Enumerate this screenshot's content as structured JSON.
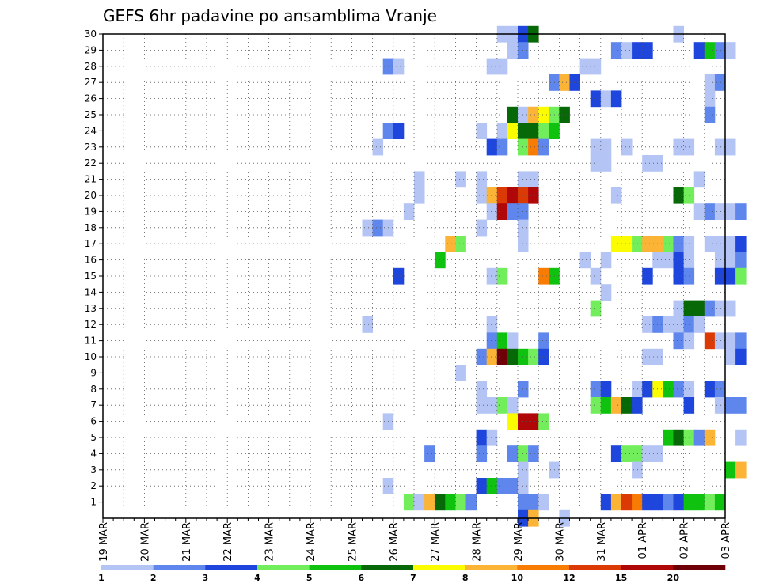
{
  "chart_data": {
    "type": "heatmap",
    "title": "GEFS 6hr padavine po ansamblima Vranje",
    "xlabel": "",
    "ylabel": "",
    "x_tick_labels": [
      "19 MAR",
      "20 MAR",
      "21 MAR",
      "22 MAR",
      "23 MAR",
      "24 MAR",
      "25 MAR",
      "26 MAR",
      "27 MAR",
      "28 MAR",
      "29 MAR",
      "30 MAR",
      "31 MAR",
      "01 APR",
      "02 APR",
      "03 APR"
    ],
    "y_tick_labels": [
      "1",
      "2",
      "3",
      "4",
      "5",
      "6",
      "7",
      "8",
      "9",
      "10",
      "11",
      "12",
      "13",
      "14",
      "15",
      "16",
      "17",
      "18",
      "19",
      "20",
      "21",
      "22",
      "23",
      "24",
      "25",
      "26",
      "27",
      "28",
      "29",
      "30"
    ],
    "x_step_unit": "6hr",
    "steps_per_day": 4,
    "y_range": [
      0,
      30
    ],
    "grid": true,
    "legend": {
      "placement": "bottom",
      "labels": [
        "1",
        "2",
        "3",
        "4",
        "5",
        "6",
        "7",
        "8",
        "10",
        "12",
        "15",
        "20"
      ],
      "colors": [
        "#b4c4f4",
        "#5e86ec",
        "#1e46dc",
        "#72ee5c",
        "#10c210",
        "#066806",
        "#fcfc00",
        "#fcb436",
        "#f87c04",
        "#dc3a04",
        "#b00808",
        "#700008"
      ]
    },
    "cells": [
      {
        "m": 30,
        "s": 38,
        "c": 0
      },
      {
        "m": 30,
        "s": 39,
        "c": 0
      },
      {
        "m": 30,
        "s": 40,
        "c": 2
      },
      {
        "m": 30,
        "s": 41,
        "c": 5
      },
      {
        "m": 30,
        "s": 55,
        "c": 0
      },
      {
        "m": 29,
        "s": 39,
        "c": 0
      },
      {
        "m": 29,
        "s": 40,
        "c": 1
      },
      {
        "m": 29,
        "s": 49,
        "c": 1
      },
      {
        "m": 29,
        "s": 50,
        "c": 0
      },
      {
        "m": 29,
        "s": 51,
        "c": 2
      },
      {
        "m": 29,
        "s": 52,
        "c": 2
      },
      {
        "m": 29,
        "s": 57,
        "c": 2
      },
      {
        "m": 29,
        "s": 58,
        "c": 4
      },
      {
        "m": 29,
        "s": 59,
        "c": 1
      },
      {
        "m": 29,
        "s": 60,
        "c": 0
      },
      {
        "m": 28,
        "s": 27,
        "c": 1
      },
      {
        "m": 28,
        "s": 28,
        "c": 0
      },
      {
        "m": 28,
        "s": 37,
        "c": 0
      },
      {
        "m": 28,
        "s": 38,
        "c": 0
      },
      {
        "m": 28,
        "s": 46,
        "c": 0
      },
      {
        "m": 28,
        "s": 47,
        "c": 0
      },
      {
        "m": 27,
        "s": 43,
        "c": 1
      },
      {
        "m": 27,
        "s": 44,
        "c": 7
      },
      {
        "m": 27,
        "s": 45,
        "c": 2
      },
      {
        "m": 27,
        "s": 58,
        "c": 0
      },
      {
        "m": 27,
        "s": 59,
        "c": 1
      },
      {
        "m": 26,
        "s": 47,
        "c": 2
      },
      {
        "m": 26,
        "s": 48,
        "c": 0
      },
      {
        "m": 26,
        "s": 49,
        "c": 2
      },
      {
        "m": 26,
        "s": 58,
        "c": 0
      },
      {
        "m": 25,
        "s": 39,
        "c": 5
      },
      {
        "m": 25,
        "s": 40,
        "c": 0
      },
      {
        "m": 25,
        "s": 41,
        "c": 7
      },
      {
        "m": 25,
        "s": 42,
        "c": 6
      },
      {
        "m": 25,
        "s": 43,
        "c": 3
      },
      {
        "m": 25,
        "s": 44,
        "c": 5
      },
      {
        "m": 25,
        "s": 58,
        "c": 1
      },
      {
        "m": 24,
        "s": 27,
        "c": 1
      },
      {
        "m": 24,
        "s": 28,
        "c": 2
      },
      {
        "m": 24,
        "s": 36,
        "c": 0
      },
      {
        "m": 24,
        "s": 38,
        "c": 0
      },
      {
        "m": 24,
        "s": 39,
        "c": 6
      },
      {
        "m": 24,
        "s": 40,
        "c": 5
      },
      {
        "m": 24,
        "s": 41,
        "c": 5
      },
      {
        "m": 24,
        "s": 42,
        "c": 3
      },
      {
        "m": 24,
        "s": 43,
        "c": 4
      },
      {
        "m": 23,
        "s": 26,
        "c": 0
      },
      {
        "m": 23,
        "s": 37,
        "c": 2
      },
      {
        "m": 23,
        "s": 38,
        "c": 1
      },
      {
        "m": 23,
        "s": 40,
        "c": 3
      },
      {
        "m": 23,
        "s": 41,
        "c": 8
      },
      {
        "m": 23,
        "s": 42,
        "c": 1
      },
      {
        "m": 23,
        "s": 47,
        "c": 0
      },
      {
        "m": 23,
        "s": 48,
        "c": 0
      },
      {
        "m": 23,
        "s": 50,
        "c": 0
      },
      {
        "m": 23,
        "s": 55,
        "c": 0
      },
      {
        "m": 23,
        "s": 56,
        "c": 0
      },
      {
        "m": 23,
        "s": 59,
        "c": 0
      },
      {
        "m": 23,
        "s": 60,
        "c": 0
      },
      {
        "m": 22,
        "s": 47,
        "c": 0
      },
      {
        "m": 22,
        "s": 48,
        "c": 0
      },
      {
        "m": 22,
        "s": 52,
        "c": 0
      },
      {
        "m": 22,
        "s": 53,
        "c": 0
      },
      {
        "m": 21,
        "s": 30,
        "c": 0
      },
      {
        "m": 21,
        "s": 34,
        "c": 0
      },
      {
        "m": 21,
        "s": 36,
        "c": 0
      },
      {
        "m": 21,
        "s": 40,
        "c": 0
      },
      {
        "m": 21,
        "s": 41,
        "c": 0
      },
      {
        "m": 21,
        "s": 57,
        "c": 0
      },
      {
        "m": 20,
        "s": 30,
        "c": 0
      },
      {
        "m": 20,
        "s": 36,
        "c": 0
      },
      {
        "m": 20,
        "s": 37,
        "c": 7
      },
      {
        "m": 20,
        "s": 38,
        "c": 9
      },
      {
        "m": 20,
        "s": 39,
        "c": 10
      },
      {
        "m": 20,
        "s": 40,
        "c": 9
      },
      {
        "m": 20,
        "s": 41,
        "c": 10
      },
      {
        "m": 20,
        "s": 49,
        "c": 0
      },
      {
        "m": 20,
        "s": 55,
        "c": 5
      },
      {
        "m": 20,
        "s": 56,
        "c": 3
      },
      {
        "m": 19,
        "s": 29,
        "c": 0
      },
      {
        "m": 19,
        "s": 37,
        "c": 0
      },
      {
        "m": 19,
        "s": 38,
        "c": 10
      },
      {
        "m": 19,
        "s": 39,
        "c": 1
      },
      {
        "m": 19,
        "s": 40,
        "c": 1
      },
      {
        "m": 19,
        "s": 57,
        "c": 0
      },
      {
        "m": 19,
        "s": 58,
        "c": 1
      },
      {
        "m": 19,
        "s": 59,
        "c": 0
      },
      {
        "m": 19,
        "s": 60,
        "c": 0
      },
      {
        "m": 19,
        "s": 61,
        "c": 1
      },
      {
        "m": 18,
        "s": 25,
        "c": 0
      },
      {
        "m": 18,
        "s": 26,
        "c": 1
      },
      {
        "m": 18,
        "s": 27,
        "c": 0
      },
      {
        "m": 18,
        "s": 36,
        "c": 0
      },
      {
        "m": 18,
        "s": 40,
        "c": 0
      },
      {
        "m": 17,
        "s": 33,
        "c": 7
      },
      {
        "m": 17,
        "s": 34,
        "c": 3
      },
      {
        "m": 17,
        "s": 40,
        "c": 0
      },
      {
        "m": 17,
        "s": 49,
        "c": 6
      },
      {
        "m": 17,
        "s": 50,
        "c": 6
      },
      {
        "m": 17,
        "s": 51,
        "c": 3
      },
      {
        "m": 17,
        "s": 52,
        "c": 7
      },
      {
        "m": 17,
        "s": 53,
        "c": 7
      },
      {
        "m": 17,
        "s": 54,
        "c": 3
      },
      {
        "m": 17,
        "s": 55,
        "c": 1
      },
      {
        "m": 17,
        "s": 56,
        "c": 0
      },
      {
        "m": 17,
        "s": 58,
        "c": 0
      },
      {
        "m": 17,
        "s": 59,
        "c": 0
      },
      {
        "m": 17,
        "s": 60,
        "c": 0
      },
      {
        "m": 17,
        "s": 61,
        "c": 2
      },
      {
        "m": 16,
        "s": 32,
        "c": 4
      },
      {
        "m": 16,
        "s": 46,
        "c": 0
      },
      {
        "m": 16,
        "s": 48,
        "c": 0
      },
      {
        "m": 16,
        "s": 53,
        "c": 0
      },
      {
        "m": 16,
        "s": 54,
        "c": 0
      },
      {
        "m": 16,
        "s": 55,
        "c": 2
      },
      {
        "m": 16,
        "s": 56,
        "c": 0
      },
      {
        "m": 16,
        "s": 59,
        "c": 0
      },
      {
        "m": 16,
        "s": 60,
        "c": 0
      },
      {
        "m": 16,
        "s": 61,
        "c": 1
      },
      {
        "m": 15,
        "s": 28,
        "c": 2
      },
      {
        "m": 15,
        "s": 37,
        "c": 0
      },
      {
        "m": 15,
        "s": 38,
        "c": 3
      },
      {
        "m": 15,
        "s": 42,
        "c": 8
      },
      {
        "m": 15,
        "s": 43,
        "c": 4
      },
      {
        "m": 15,
        "s": 47,
        "c": 0
      },
      {
        "m": 15,
        "s": 52,
        "c": 2
      },
      {
        "m": 15,
        "s": 55,
        "c": 2
      },
      {
        "m": 15,
        "s": 56,
        "c": 1
      },
      {
        "m": 15,
        "s": 59,
        "c": 2
      },
      {
        "m": 15,
        "s": 60,
        "c": 2
      },
      {
        "m": 15,
        "s": 61,
        "c": 3
      },
      {
        "m": 14,
        "s": 48,
        "c": 0
      },
      {
        "m": 13,
        "s": 47,
        "c": 3
      },
      {
        "m": 13,
        "s": 55,
        "c": 0
      },
      {
        "m": 13,
        "s": 56,
        "c": 5
      },
      {
        "m": 13,
        "s": 57,
        "c": 5
      },
      {
        "m": 13,
        "s": 58,
        "c": 1
      },
      {
        "m": 13,
        "s": 59,
        "c": 0
      },
      {
        "m": 13,
        "s": 60,
        "c": 0
      },
      {
        "m": 12,
        "s": 25,
        "c": 0
      },
      {
        "m": 12,
        "s": 37,
        "c": 0
      },
      {
        "m": 12,
        "s": 52,
        "c": 0
      },
      {
        "m": 12,
        "s": 53,
        "c": 1
      },
      {
        "m": 12,
        "s": 54,
        "c": 0
      },
      {
        "m": 12,
        "s": 55,
        "c": 0
      },
      {
        "m": 12,
        "s": 56,
        "c": 1
      },
      {
        "m": 12,
        "s": 57,
        "c": 0
      },
      {
        "m": 11,
        "s": 37,
        "c": 1
      },
      {
        "m": 11,
        "s": 38,
        "c": 4
      },
      {
        "m": 11,
        "s": 39,
        "c": 0
      },
      {
        "m": 11,
        "s": 42,
        "c": 1
      },
      {
        "m": 11,
        "s": 55,
        "c": 1
      },
      {
        "m": 11,
        "s": 56,
        "c": 0
      },
      {
        "m": 11,
        "s": 58,
        "c": 9
      },
      {
        "m": 11,
        "s": 59,
        "c": 0
      },
      {
        "m": 11,
        "s": 60,
        "c": 0
      },
      {
        "m": 11,
        "s": 61,
        "c": 1
      },
      {
        "m": 10,
        "s": 36,
        "c": 1
      },
      {
        "m": 10,
        "s": 37,
        "c": 7
      },
      {
        "m": 10,
        "s": 38,
        "c": 11
      },
      {
        "m": 10,
        "s": 39,
        "c": 5
      },
      {
        "m": 10,
        "s": 40,
        "c": 4
      },
      {
        "m": 10,
        "s": 41,
        "c": 3
      },
      {
        "m": 10,
        "s": 42,
        "c": 2
      },
      {
        "m": 10,
        "s": 52,
        "c": 0
      },
      {
        "m": 10,
        "s": 53,
        "c": 0
      },
      {
        "m": 10,
        "s": 60,
        "c": 0
      },
      {
        "m": 10,
        "s": 61,
        "c": 2
      },
      {
        "m": 9,
        "s": 34,
        "c": 0
      },
      {
        "m": 8,
        "s": 36,
        "c": 0
      },
      {
        "m": 8,
        "s": 40,
        "c": 1
      },
      {
        "m": 8,
        "s": 47,
        "c": 1
      },
      {
        "m": 8,
        "s": 48,
        "c": 2
      },
      {
        "m": 8,
        "s": 51,
        "c": 0
      },
      {
        "m": 8,
        "s": 52,
        "c": 2
      },
      {
        "m": 8,
        "s": 53,
        "c": 6
      },
      {
        "m": 8,
        "s": 54,
        "c": 4
      },
      {
        "m": 8,
        "s": 55,
        "c": 1
      },
      {
        "m": 8,
        "s": 56,
        "c": 0
      },
      {
        "m": 8,
        "s": 58,
        "c": 2
      },
      {
        "m": 8,
        "s": 59,
        "c": 1
      },
      {
        "m": 7,
        "s": 36,
        "c": 0
      },
      {
        "m": 7,
        "s": 37,
        "c": 0
      },
      {
        "m": 7,
        "s": 38,
        "c": 3
      },
      {
        "m": 7,
        "s": 39,
        "c": 0
      },
      {
        "m": 7,
        "s": 47,
        "c": 3
      },
      {
        "m": 7,
        "s": 48,
        "c": 4
      },
      {
        "m": 7,
        "s": 49,
        "c": 7
      },
      {
        "m": 7,
        "s": 50,
        "c": 5
      },
      {
        "m": 7,
        "s": 51,
        "c": 2
      },
      {
        "m": 7,
        "s": 56,
        "c": 2
      },
      {
        "m": 7,
        "s": 59,
        "c": 0
      },
      {
        "m": 7,
        "s": 60,
        "c": 1
      },
      {
        "m": 7,
        "s": 61,
        "c": 1
      },
      {
        "m": 6,
        "s": 27,
        "c": 0
      },
      {
        "m": 6,
        "s": 39,
        "c": 6
      },
      {
        "m": 6,
        "s": 40,
        "c": 10
      },
      {
        "m": 6,
        "s": 41,
        "c": 10
      },
      {
        "m": 6,
        "s": 42,
        "c": 3
      },
      {
        "m": 5,
        "s": 36,
        "c": 2
      },
      {
        "m": 5,
        "s": 37,
        "c": 0
      },
      {
        "m": 5,
        "s": 54,
        "c": 4
      },
      {
        "m": 5,
        "s": 55,
        "c": 5
      },
      {
        "m": 5,
        "s": 56,
        "c": 3
      },
      {
        "m": 5,
        "s": 57,
        "c": 1
      },
      {
        "m": 5,
        "s": 58,
        "c": 7
      },
      {
        "m": 5,
        "s": 61,
        "c": 0
      },
      {
        "m": 4,
        "s": 31,
        "c": 1
      },
      {
        "m": 4,
        "s": 36,
        "c": 1
      },
      {
        "m": 4,
        "s": 39,
        "c": 1
      },
      {
        "m": 4,
        "s": 40,
        "c": 3
      },
      {
        "m": 4,
        "s": 41,
        "c": 1
      },
      {
        "m": 4,
        "s": 49,
        "c": 2
      },
      {
        "m": 4,
        "s": 50,
        "c": 3
      },
      {
        "m": 4,
        "s": 51,
        "c": 3
      },
      {
        "m": 4,
        "s": 52,
        "c": 0
      },
      {
        "m": 4,
        "s": 53,
        "c": 0
      },
      {
        "m": 3,
        "s": 40,
        "c": 0
      },
      {
        "m": 3,
        "s": 43,
        "c": 0
      },
      {
        "m": 3,
        "s": 51,
        "c": 0
      },
      {
        "m": 3,
        "s": 60,
        "c": 4
      },
      {
        "m": 3,
        "s": 61,
        "c": 7
      },
      {
        "m": 2,
        "s": 27,
        "c": 0
      },
      {
        "m": 2,
        "s": 36,
        "c": 2
      },
      {
        "m": 2,
        "s": 37,
        "c": 4
      },
      {
        "m": 2,
        "s": 38,
        "c": 1
      },
      {
        "m": 2,
        "s": 39,
        "c": 1
      },
      {
        "m": 2,
        "s": 40,
        "c": 0
      },
      {
        "m": 1,
        "s": 29,
        "c": 3
      },
      {
        "m": 1,
        "s": 30,
        "c": 0
      },
      {
        "m": 1,
        "s": 31,
        "c": 7
      },
      {
        "m": 1,
        "s": 32,
        "c": 5
      },
      {
        "m": 1,
        "s": 33,
        "c": 4
      },
      {
        "m": 1,
        "s": 34,
        "c": 3
      },
      {
        "m": 1,
        "s": 35,
        "c": 1
      },
      {
        "m": 1,
        "s": 40,
        "c": 1
      },
      {
        "m": 1,
        "s": 41,
        "c": 1
      },
      {
        "m": 1,
        "s": 42,
        "c": 0
      },
      {
        "m": 1,
        "s": 48,
        "c": 2
      },
      {
        "m": 1,
        "s": 49,
        "c": 7
      },
      {
        "m": 1,
        "s": 50,
        "c": 9
      },
      {
        "m": 1,
        "s": 51,
        "c": 8
      },
      {
        "m": 1,
        "s": 52,
        "c": 2
      },
      {
        "m": 1,
        "s": 53,
        "c": 2
      },
      {
        "m": 1,
        "s": 54,
        "c": 1
      },
      {
        "m": 1,
        "s": 55,
        "c": 2
      },
      {
        "m": 1,
        "s": 56,
        "c": 4
      },
      {
        "m": 1,
        "s": 57,
        "c": 4
      },
      {
        "m": 1,
        "s": 58,
        "c": 3
      },
      {
        "m": 1,
        "s": 59,
        "c": 4
      },
      {
        "m": 0,
        "s": 40,
        "c": 2
      },
      {
        "m": 0,
        "s": 41,
        "c": 7
      },
      {
        "m": 0,
        "s": 44,
        "c": 0
      }
    ]
  }
}
